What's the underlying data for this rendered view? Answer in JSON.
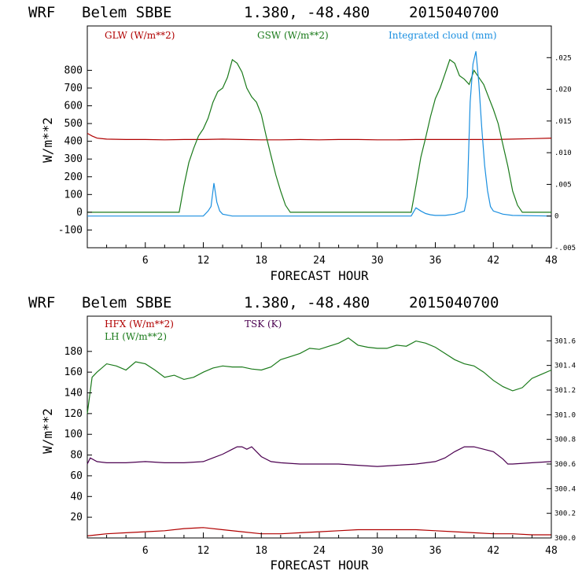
{
  "colors": {
    "red": "#b00000",
    "green": "#1a7a1a",
    "blue": "#1a8fe0",
    "purple": "#4b0050",
    "axis": "#000000"
  },
  "chart_data": [
    {
      "type": "line",
      "header": {
        "model": "WRF",
        "station": "Belem SBBE",
        "coords": "1.380, -48.480",
        "date": "2015040700"
      },
      "xlabel": "FORECAST HOUR",
      "ylabel": "W/m**2",
      "xlim": [
        0,
        48
      ],
      "ylim": [
        -200,
        1050
      ],
      "xticks": [
        6,
        12,
        18,
        24,
        30,
        36,
        42,
        48
      ],
      "yticks": [
        -100,
        0,
        100,
        200,
        300,
        400,
        500,
        600,
        700,
        800
      ],
      "right_axis": {
        "ylim": [
          -0.005,
          0.03
        ],
        "ticks": [
          -0.005,
          0,
          0.005,
          0.01,
          0.015,
          0.02,
          0.025
        ],
        "tick_labels": [
          "-.005",
          "0",
          ".005",
          ".010",
          ".015",
          ".020",
          ".025"
        ]
      },
      "legend": [
        "GLW (W/m**2)",
        "GSW (W/m**2)",
        "Integrated cloud (mm)"
      ],
      "series": [
        {
          "name": "GLW (W/m**2)",
          "color": "red",
          "axis": "left",
          "x": [
            0,
            0.5,
            1,
            2,
            4,
            6,
            8,
            10,
            12,
            14,
            16,
            18,
            20,
            22,
            24,
            26,
            28,
            30,
            32,
            34,
            36,
            38,
            40,
            42,
            44,
            46,
            48
          ],
          "y": [
            445,
            430,
            418,
            412,
            410,
            410,
            408,
            410,
            410,
            412,
            410,
            408,
            408,
            410,
            408,
            410,
            410,
            408,
            408,
            410,
            410,
            410,
            410,
            410,
            412,
            415,
            418
          ]
        },
        {
          "name": "GSW (W/m**2)",
          "color": "green",
          "axis": "left",
          "x": [
            0,
            9.5,
            10,
            10.5,
            11,
            11.5,
            12,
            12.5,
            13,
            13.5,
            14,
            14.5,
            15,
            15.5,
            16,
            16.5,
            17,
            17.5,
            18,
            18.5,
            19,
            19.5,
            20,
            20.5,
            21,
            21.5,
            33.5,
            34,
            34.5,
            35,
            35.5,
            36,
            36.5,
            37,
            37.5,
            38,
            38.5,
            39,
            39.5,
            40,
            40.5,
            41,
            41.5,
            42,
            42.5,
            43,
            43.5,
            44,
            44.5,
            45,
            48
          ],
          "y": [
            0,
            0,
            150,
            280,
            360,
            430,
            470,
            530,
            620,
            680,
            700,
            760,
            860,
            840,
            790,
            700,
            650,
            620,
            550,
            430,
            320,
            210,
            120,
            40,
            0,
            0,
            0,
            150,
            310,
            420,
            540,
            640,
            700,
            780,
            860,
            840,
            770,
            750,
            720,
            800,
            760,
            720,
            650,
            580,
            500,
            380,
            260,
            120,
            40,
            0,
            0
          ]
        },
        {
          "name": "Integrated cloud (mm)",
          "color": "blue",
          "axis": "right",
          "x": [
            0,
            12,
            12.5,
            12.8,
            13.1,
            13.4,
            13.7,
            14,
            15,
            33.5,
            34,
            34.5,
            35,
            35.5,
            36,
            37,
            38,
            39,
            39.3,
            39.6,
            39.9,
            40.2,
            40.5,
            40.8,
            41.1,
            41.4,
            41.7,
            42,
            43,
            44,
            48
          ],
          "y": [
            0,
            0,
            0.0008,
            0.0015,
            0.0052,
            0.0022,
            0.0008,
            0.0003,
            0,
            0,
            0.0013,
            0.0008,
            0.0004,
            0.0002,
            0.0001,
            0.0001,
            0.0003,
            0.0008,
            0.003,
            0.018,
            0.024,
            0.026,
            0.021,
            0.014,
            0.008,
            0.004,
            0.0015,
            0.0008,
            0.0003,
            0.0001,
            0
          ]
        }
      ]
    },
    {
      "type": "line",
      "header": {
        "model": "WRF",
        "station": "Belem SBBE",
        "coords": "1.380, -48.480",
        "date": "2015040700"
      },
      "xlabel": "FORECAST HOUR",
      "ylabel": "W/m**2",
      "xlim": [
        0,
        48
      ],
      "ylim": [
        0,
        214
      ],
      "xticks": [
        6,
        12,
        18,
        24,
        30,
        36,
        42,
        48
      ],
      "yticks": [
        20,
        40,
        60,
        80,
        100,
        120,
        140,
        160,
        180
      ],
      "right_axis": {
        "ylim": [
          300.0,
          301.8
        ],
        "ticks": [
          300.0,
          300.2,
          300.4,
          300.6,
          300.8,
          301.0,
          301.2,
          301.4,
          301.6
        ],
        "tick_labels": [
          "300.0",
          "300.2",
          "300.4",
          "300.6",
          "300.8",
          "301.0",
          "301.2",
          "301.4",
          "301.6"
        ]
      },
      "legend": [
        "HFX (W/m**2)",
        "LH (W/m**2)",
        "TSK (K)"
      ],
      "series": [
        {
          "name": "HFX (W/m**2)",
          "color": "red",
          "axis": "left",
          "x": [
            0,
            2,
            4,
            6,
            8,
            10,
            12,
            14,
            16,
            18,
            20,
            22,
            24,
            26,
            28,
            30,
            32,
            34,
            36,
            38,
            40,
            42,
            44,
            46,
            48
          ],
          "y": [
            2,
            4,
            5,
            6,
            7,
            9,
            10,
            8,
            6,
            4,
            4,
            5,
            6,
            7,
            8,
            8,
            8,
            8,
            7,
            6,
            5,
            4,
            4,
            3,
            3
          ]
        },
        {
          "name": "LH (W/m**2)",
          "color": "green",
          "axis": "left",
          "x": [
            0,
            0.5,
            1,
            2,
            3,
            4,
            5,
            6,
            7,
            8,
            9,
            10,
            11,
            12,
            13,
            14,
            15,
            16,
            17,
            18,
            19,
            20,
            21,
            22,
            23,
            24,
            25,
            26,
            27,
            28,
            29,
            30,
            31,
            32,
            33,
            34,
            35,
            36,
            37,
            38,
            39,
            40,
            41,
            42,
            43,
            44,
            45,
            46,
            47,
            48
          ],
          "y": [
            120,
            155,
            160,
            168,
            166,
            162,
            170,
            168,
            162,
            155,
            157,
            153,
            155,
            160,
            164,
            166,
            165,
            165,
            163,
            162,
            165,
            172,
            175,
            178,
            183,
            182,
            185,
            188,
            193,
            186,
            184,
            183,
            183,
            186,
            185,
            190,
            188,
            184,
            178,
            172,
            168,
            166,
            160,
            152,
            146,
            142,
            145,
            154,
            158,
            162
          ]
        },
        {
          "name": "TSK (K)",
          "color": "purple",
          "axis": "right",
          "x": [
            0,
            0.3,
            1,
            2,
            4,
            6,
            8,
            10,
            12,
            13,
            14,
            15,
            15.5,
            16,
            16.5,
            17,
            18,
            19,
            20,
            22,
            24,
            26,
            28,
            30,
            32,
            34,
            36,
            37,
            38,
            39,
            39.5,
            40,
            41,
            42,
            43,
            43.5,
            44,
            46,
            48
          ],
          "y": [
            300.6,
            300.65,
            300.62,
            300.61,
            300.61,
            300.62,
            300.61,
            300.61,
            300.62,
            300.65,
            300.68,
            300.72,
            300.74,
            300.74,
            300.72,
            300.74,
            300.66,
            300.62,
            300.61,
            300.6,
            300.6,
            300.6,
            300.59,
            300.58,
            300.59,
            300.6,
            300.62,
            300.65,
            300.7,
            300.74,
            300.74,
            300.74,
            300.72,
            300.7,
            300.64,
            300.6,
            300.6,
            300.61,
            300.62
          ]
        }
      ]
    }
  ]
}
